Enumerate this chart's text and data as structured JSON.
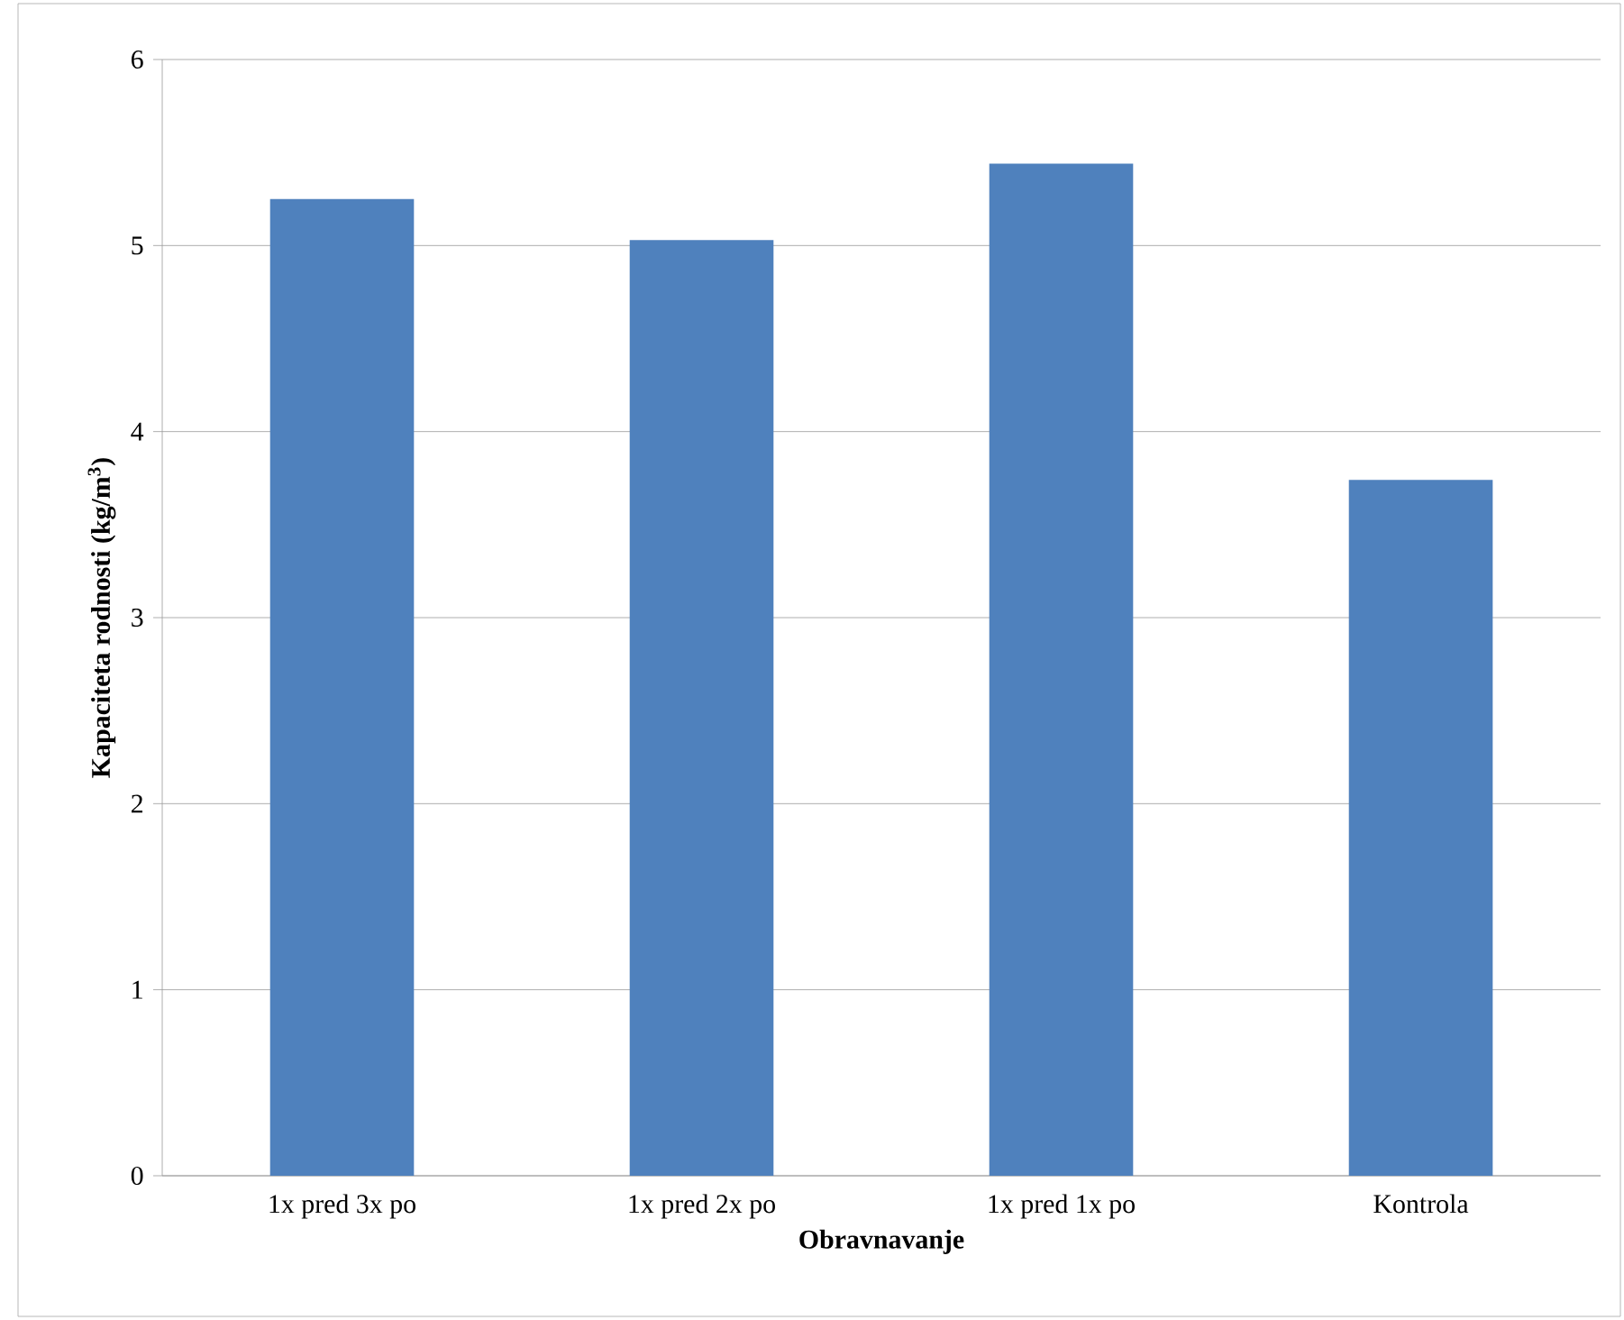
{
  "chart_data": {
    "type": "bar",
    "xlabel": "Obravnavanje",
    "ylabel": "Kapaciteta rodnosti (kg/m$^{3}$)",
    "categories": [
      "1x pred 3x po",
      "1x pred 2x po",
      "1x pred 1x po",
      "Kontrola"
    ],
    "values": [
      5.25,
      5.03,
      5.44,
      3.74
    ],
    "color": "#4f81bd",
    "ylim": [
      0,
      6
    ],
    "yticks": [
      0,
      1,
      2,
      3,
      4,
      5,
      6
    ],
    "grid": "y"
  }
}
